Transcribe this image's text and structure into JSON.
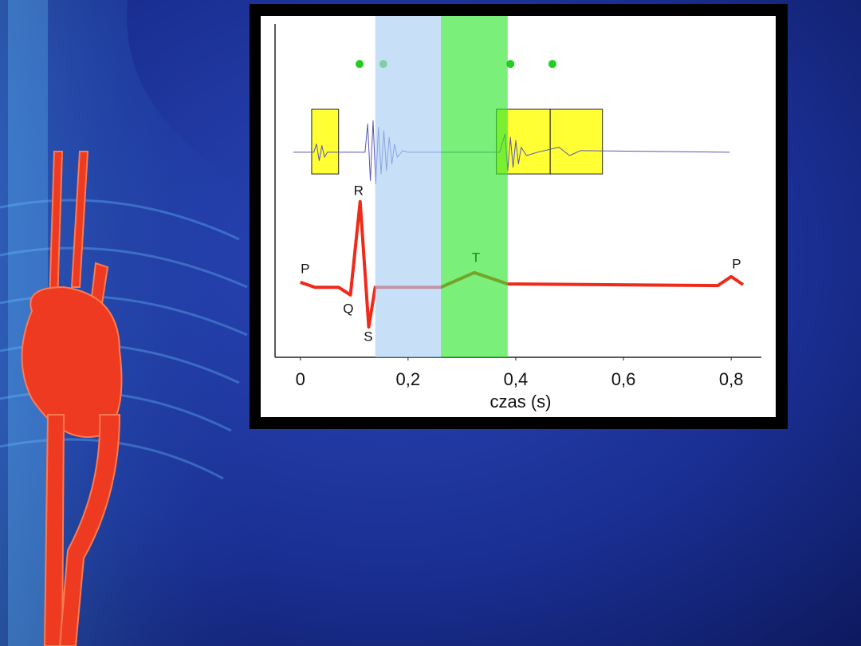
{
  "chart_data": {
    "type": "line",
    "xlabel": "czas (s)",
    "xlim": [
      -0.047,
      0.856
    ],
    "ylim": [
      0,
      10
    ],
    "xticks": [
      0,
      {
        "value": 0.2,
        "label": "0,2"
      },
      {
        "value": 0.4,
        "label": "0,4"
      },
      {
        "value": 0.6,
        "label": "0,6"
      },
      {
        "value": 0.8,
        "label": "0,8"
      }
    ],
    "spans": [
      {
        "start": 0.139,
        "end": 0.261,
        "color": "#a9cff5"
      },
      {
        "start": 0.261,
        "end": 0.385,
        "color": "#33e633"
      }
    ],
    "boxes": [
      {
        "x0": 0.021,
        "x1": 0.071,
        "y0": 5.5,
        "y1": 7.44,
        "color": "#ffff33"
      },
      {
        "x0": 0.364,
        "x1": 0.464,
        "y0": 5.5,
        "y1": 7.44,
        "color": "#ffff33"
      },
      {
        "x0": 0.464,
        "x1": 0.561,
        "y0": 5.5,
        "y1": 7.44,
        "color": "#ffff33"
      }
    ],
    "series": [
      {
        "color": "#5555bb",
        "width": 1,
        "x": [
          -0.013,
          0.025,
          0.03,
          0.035,
          0.04,
          0.045,
          0.05,
          0.06,
          0.12,
          0.125,
          0.13,
          0.135,
          0.14,
          0.145,
          0.15,
          0.155,
          0.16,
          0.165,
          0.17,
          0.175,
          0.18,
          0.19,
          0.2,
          0.37,
          0.38,
          0.385,
          0.39,
          0.395,
          0.4,
          0.405,
          0.41,
          0.42,
          0.44,
          0.48,
          0.5,
          0.52,
          0.797
        ],
        "values": [
          6.15,
          6.15,
          6.4,
          5.9,
          6.35,
          6.0,
          6.15,
          6.15,
          6.15,
          7.0,
          5.3,
          7.1,
          5.2,
          6.9,
          5.5,
          6.8,
          5.6,
          6.6,
          5.8,
          6.4,
          6.0,
          6.2,
          6.15,
          6.15,
          6.7,
          5.6,
          6.6,
          5.7,
          6.5,
          5.8,
          6.3,
          6.05,
          6.15,
          6.3,
          6.05,
          6.2,
          6.15
        ]
      },
      {
        "color": "#ee2a1a",
        "width": 4,
        "x": [
          0,
          0.027,
          0.071,
          0.093,
          0.111,
          0.127,
          0.139,
          0.261,
          0.323,
          0.385,
          0.775,
          0.8,
          0.822
        ],
        "values": [
          2.25,
          2.1,
          2.1,
          1.87,
          4.67,
          0.91,
          2.1,
          2.1,
          2.54,
          2.2,
          2.15,
          2.42,
          2.18
        ]
      }
    ],
    "points": {
      "x": [
        0.11,
        0.154,
        0.39,
        0.468
      ],
      "values": [
        8.8,
        8.8,
        8.8,
        8.8
      ],
      "colors": [
        "#22cc22",
        "#7fd0a0",
        "#22cc22",
        "#22cc22"
      ]
    },
    "annotations": [
      {
        "text": "P",
        "x": 0.009,
        "y": 2.63,
        "color": "#111111"
      },
      {
        "text": "Q",
        "x": 0.089,
        "y": 1.44,
        "color": "#111111"
      },
      {
        "text": "R",
        "x": 0.108,
        "y": 4.98,
        "color": "#111111"
      },
      {
        "text": "S",
        "x": 0.126,
        "y": 0.6,
        "color": "#111111"
      },
      {
        "text": "T",
        "x": 0.326,
        "y": 2.97,
        "color": "#1a8a1a"
      },
      {
        "text": "P",
        "x": 0.81,
        "y": 2.77,
        "color": "#111111"
      }
    ]
  }
}
